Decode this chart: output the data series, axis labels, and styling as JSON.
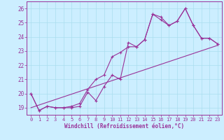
{
  "xlabel": "Windchill (Refroidissement éolien,°C)",
  "bg_color": "#cceeff",
  "line_color": "#993399",
  "xlim": [
    -0.5,
    23.5
  ],
  "ylim": [
    18.5,
    26.5
  ],
  "xticks": [
    0,
    1,
    2,
    3,
    4,
    5,
    6,
    7,
    8,
    9,
    10,
    11,
    12,
    13,
    14,
    15,
    16,
    17,
    18,
    19,
    20,
    21,
    22,
    23
  ],
  "yticks": [
    19,
    20,
    21,
    22,
    23,
    24,
    25,
    26
  ],
  "line1_x": [
    0,
    1,
    2,
    3,
    4,
    5,
    6,
    7,
    8,
    9,
    10,
    11,
    12,
    13,
    14,
    15,
    16,
    17,
    18,
    19,
    20,
    21,
    22,
    23
  ],
  "line1_y": [
    20.0,
    18.8,
    19.1,
    19.0,
    19.0,
    19.0,
    19.1,
    20.1,
    19.5,
    20.5,
    21.3,
    21.0,
    23.6,
    23.3,
    23.8,
    25.6,
    25.4,
    24.8,
    25.1,
    26.0,
    24.8,
    23.9,
    23.9,
    23.5
  ],
  "line2_x": [
    0,
    1,
    2,
    3,
    4,
    5,
    6,
    7,
    8,
    9,
    10,
    11,
    12,
    13,
    14,
    15,
    16,
    17,
    18,
    19,
    20,
    21,
    22,
    23
  ],
  "line2_y": [
    20.0,
    18.8,
    19.1,
    19.0,
    19.0,
    19.1,
    19.3,
    20.3,
    21.0,
    21.3,
    22.6,
    22.9,
    23.3,
    23.3,
    23.8,
    25.6,
    25.2,
    24.8,
    25.1,
    26.0,
    24.8,
    23.9,
    23.9,
    23.5
  ],
  "line3_x": [
    0,
    23
  ],
  "line3_y": [
    19.0,
    23.4
  ]
}
